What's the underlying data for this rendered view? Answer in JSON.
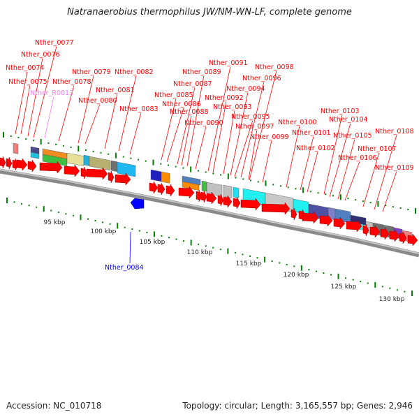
{
  "title": "Natranaerobius thermophilus JW/NM-WN-LF, complete genome",
  "accession": "Accession: NC_010718",
  "summary": "Topology: circular; Length: 3,165,557 bp; Genes: 2,946",
  "colors": {
    "cds": "#ff0000",
    "rna": "#ee82ee",
    "reverse_highlight": "#0000ff",
    "backbone": "#808080",
    "tick": "#008000"
  },
  "scale_labels": [
    "95 kbp",
    "100 kbp",
    "105 kbp",
    "110 kbp",
    "115 kbp",
    "120 kbp",
    "125 kbp",
    "130 kbp"
  ],
  "gene_labels": [
    {
      "id": "Nther_0074",
      "kind": "cds"
    },
    {
      "id": "Nther_0075",
      "kind": "cds"
    },
    {
      "id": "Nther_0076",
      "kind": "cds"
    },
    {
      "id": "Nther_0077",
      "kind": "cds"
    },
    {
      "id": "Nther_R0013",
      "kind": "rna"
    },
    {
      "id": "Nther_0078",
      "kind": "cds"
    },
    {
      "id": "Nther_0079",
      "kind": "cds"
    },
    {
      "id": "Nther_0080",
      "kind": "cds"
    },
    {
      "id": "Nther_0081",
      "kind": "cds"
    },
    {
      "id": "Nther_0082",
      "kind": "cds"
    },
    {
      "id": "Nther_0083",
      "kind": "cds"
    },
    {
      "id": "Nther_0084",
      "kind": "reverse"
    },
    {
      "id": "Nther_0085",
      "kind": "cds"
    },
    {
      "id": "Nther_0086",
      "kind": "cds"
    },
    {
      "id": "Nther_0087",
      "kind": "cds"
    },
    {
      "id": "Nther_0088",
      "kind": "cds"
    },
    {
      "id": "Nther_0089",
      "kind": "cds"
    },
    {
      "id": "Nther_0090",
      "kind": "cds"
    },
    {
      "id": "Nther_0091",
      "kind": "cds"
    },
    {
      "id": "Nther_0092",
      "kind": "cds"
    },
    {
      "id": "Nther_0093",
      "kind": "cds"
    },
    {
      "id": "Nther_0094",
      "kind": "cds"
    },
    {
      "id": "Nther_0095",
      "kind": "cds"
    },
    {
      "id": "Nther_0096",
      "kind": "cds"
    },
    {
      "id": "Nther_0097",
      "kind": "cds"
    },
    {
      "id": "Nther_0098",
      "kind": "cds"
    },
    {
      "id": "Nther_0099",
      "kind": "cds"
    },
    {
      "id": "Nther_0100",
      "kind": "cds"
    },
    {
      "id": "Nther_0101",
      "kind": "cds"
    },
    {
      "id": "Nther_0102",
      "kind": "cds"
    },
    {
      "id": "Nther_0103",
      "kind": "cds"
    },
    {
      "id": "Nther_0104",
      "kind": "cds"
    },
    {
      "id": "Nther_0105",
      "kind": "cds"
    },
    {
      "id": "Nther_0106",
      "kind": "cds"
    },
    {
      "id": "Nther_0107",
      "kind": "cds"
    },
    {
      "id": "Nther_0108",
      "kind": "cds"
    },
    {
      "id": "Nther_0109",
      "kind": "cds"
    }
  ]
}
